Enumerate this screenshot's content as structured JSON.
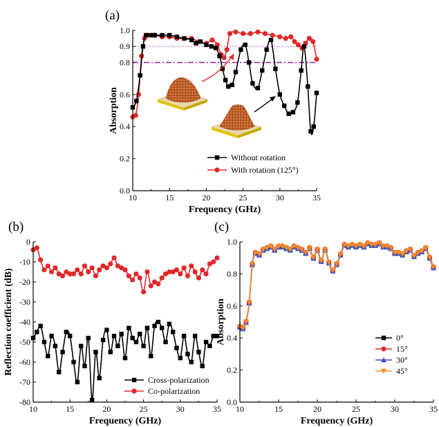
{
  "chart_data": [
    {
      "panel": "(a)",
      "type": "line",
      "xlabel": "Frequency (GHz)",
      "ylabel": "Absorption",
      "xlim": [
        10,
        35
      ],
      "ylim": [
        0,
        1
      ],
      "xticks": [
        10,
        15,
        20,
        25,
        30,
        35
      ],
      "yticks": [
        0.0,
        0.2,
        0.4,
        0.6,
        0.8,
        0.9,
        1.0
      ],
      "yticklabels": [
        "0.0",
        "0.2",
        "0.4",
        "0.6",
        "0.8",
        "0.9",
        "1.0"
      ],
      "ref_lines": [
        {
          "y": 0.9,
          "color": "#b050b0",
          "style": "dotted"
        },
        {
          "y": 0.8,
          "color": "#9a2a9a",
          "style": "dashdot"
        }
      ],
      "legend_position": "bottom-right",
      "series": [
        {
          "name": "Without rotation",
          "color": "#000000",
          "marker": "square",
          "x": [
            10,
            10.5,
            11,
            11.4,
            11.8,
            12.5,
            13,
            14,
            15,
            16,
            17,
            18,
            18.6,
            19.2,
            20,
            20.7,
            21.3,
            21.8,
            22.2,
            22.6,
            23,
            23.5,
            24,
            24.7,
            25.3,
            25.8,
            26.3,
            27,
            27.6,
            28.2,
            28.8,
            29.4,
            30,
            30.6,
            31.2,
            31.8,
            32.4,
            32.9,
            33.3,
            33.8,
            34.2,
            34.6,
            35
          ],
          "y": [
            0.52,
            0.56,
            0.72,
            0.9,
            0.97,
            0.97,
            0.97,
            0.97,
            0.97,
            0.96,
            0.95,
            0.94,
            0.92,
            0.93,
            0.91,
            0.9,
            0.89,
            0.84,
            0.76,
            0.69,
            0.65,
            0.66,
            0.74,
            0.88,
            0.91,
            0.8,
            0.67,
            0.64,
            0.75,
            0.88,
            0.94,
            0.76,
            0.6,
            0.53,
            0.48,
            0.49,
            0.55,
            0.75,
            0.9,
            0.65,
            0.37,
            0.4,
            0.61
          ]
        },
        {
          "name": "With rotation (125°)",
          "color": "#e0282a",
          "marker": "circle",
          "x": [
            10,
            10.4,
            10.8,
            11.2,
            11.6,
            12,
            13,
            14,
            15,
            16,
            17,
            18,
            19,
            20,
            20.8,
            21.5,
            22,
            22.4,
            22.8,
            23.2,
            24,
            25,
            26,
            27,
            28,
            29,
            30,
            30.8,
            31.5,
            32,
            32.5,
            33,
            33.5,
            34,
            34.5,
            35
          ],
          "y": [
            0.46,
            0.47,
            0.6,
            0.84,
            0.95,
            0.97,
            0.97,
            0.96,
            0.96,
            0.95,
            0.95,
            0.95,
            0.93,
            0.92,
            0.94,
            0.91,
            0.85,
            0.83,
            0.88,
            0.98,
            0.99,
            0.98,
            0.98,
            0.99,
            0.98,
            0.97,
            0.96,
            0.95,
            0.96,
            0.93,
            0.91,
            0.89,
            0.92,
            0.95,
            0.93,
            0.82
          ]
        }
      ]
    },
    {
      "panel": "(b)",
      "type": "line",
      "xlabel": "Frequency (GHz)",
      "ylabel": "Reflection coefficient (dB)",
      "xlim": [
        10,
        35
      ],
      "ylim": [
        -80,
        0
      ],
      "xticks": [
        10,
        15,
        20,
        25,
        30,
        35
      ],
      "yticks": [
        0,
        -10,
        -20,
        -30,
        -40,
        -50,
        -60,
        -70,
        -80
      ],
      "legend_position": "bottom-right",
      "series": [
        {
          "name": "Cross-polarization",
          "color": "#000000",
          "marker": "square",
          "x": [
            10,
            10.5,
            11,
            11.5,
            12,
            12.5,
            13,
            13.5,
            14,
            14.5,
            15,
            15.5,
            16,
            16.5,
            17,
            17.5,
            18,
            18.5,
            19,
            19.5,
            20,
            20.5,
            21,
            21.5,
            22,
            22.5,
            23,
            23.5,
            24,
            24.5,
            25,
            25.5,
            26,
            26.5,
            27,
            27.5,
            28,
            28.5,
            29,
            29.5,
            30,
            30.5,
            31,
            31.5,
            32,
            32.5,
            33,
            33.5,
            34,
            34.5,
            35
          ],
          "y": [
            -48,
            -45,
            -42,
            -50,
            -57,
            -47,
            -52,
            -65,
            -55,
            -45,
            -47,
            -60,
            -70,
            -52,
            -62,
            -48,
            -79,
            -55,
            -68,
            -49,
            -44,
            -55,
            -47,
            -52,
            -46,
            -58,
            -43,
            -48,
            -50,
            -46,
            -52,
            -43,
            -57,
            -42,
            -40,
            -43,
            -50,
            -41,
            -45,
            -53,
            -58,
            -47,
            -56,
            -60,
            -47,
            -55,
            -62,
            -50,
            -52,
            -47,
            -47
          ]
        },
        {
          "name": "Co-polarization",
          "color": "#e0282a",
          "marker": "circle",
          "x": [
            10,
            10.5,
            11,
            11.5,
            12,
            12.5,
            13,
            13.5,
            14,
            14.5,
            15,
            15.5,
            16,
            16.5,
            17,
            17.5,
            18,
            18.5,
            19,
            19.5,
            20,
            20.5,
            21,
            21.5,
            22,
            22.5,
            23,
            23.5,
            24,
            24.5,
            25,
            25.5,
            26,
            26.5,
            27,
            27.5,
            28,
            28.5,
            29,
            29.5,
            30,
            30.5,
            31,
            31.5,
            32,
            32.5,
            33,
            33.5,
            34,
            34.5,
            35
          ],
          "y": [
            -4,
            -3,
            -9,
            -14,
            -12,
            -15,
            -13,
            -16,
            -17,
            -15,
            -16,
            -16,
            -14,
            -16,
            -12,
            -15,
            -13,
            -17,
            -14,
            -12,
            -13,
            -11,
            -8,
            -12,
            -13,
            -14,
            -17,
            -19,
            -16,
            -18,
            -25,
            -15,
            -22,
            -20,
            -21,
            -18,
            -16,
            -15,
            -15,
            -14,
            -16,
            -13,
            -17,
            -12,
            -15,
            -18,
            -14,
            -16,
            -11,
            -10,
            -8
          ]
        }
      ]
    },
    {
      "panel": "(c)",
      "type": "line",
      "xlabel": "Frequency (GHz)",
      "ylabel": "Absorption",
      "xlim": [
        10,
        35
      ],
      "ylim": [
        0,
        1
      ],
      "xticks": [
        10,
        15,
        20,
        25,
        30,
        35
      ],
      "yticks": [
        0.0,
        0.2,
        0.4,
        0.6,
        0.8,
        1.0
      ],
      "yticklabels": [
        "0.0",
        "0.2",
        "0.4",
        "0.6",
        "0.8",
        "1.0"
      ],
      "legend_position": "bottom-right",
      "x": [
        10,
        10.4,
        10.8,
        11.2,
        11.6,
        12,
        12.5,
        13,
        13.5,
        14,
        14.5,
        15,
        15.5,
        16,
        16.5,
        17,
        17.5,
        18,
        18.5,
        19,
        19.5,
        20,
        20.5,
        21,
        21.5,
        22,
        22.5,
        23,
        23.5,
        24,
        24.5,
        25,
        25.5,
        26,
        26.5,
        27,
        27.5,
        28,
        28.5,
        29,
        29.5,
        30,
        30.5,
        31,
        31.5,
        32,
        32.5,
        33,
        33.5,
        34,
        34.5,
        35
      ],
      "series": [
        {
          "name": "0°",
          "color": "#000000",
          "marker": "square",
          "offset": 0.0
        },
        {
          "name": "15°",
          "color": "#e0282a",
          "marker": "circle",
          "offset": 0.004
        },
        {
          "name": "30°",
          "color": "#3a4fc4",
          "marker": "triangle",
          "offset": -0.004
        },
        {
          "name": "45°",
          "color": "#f08c28",
          "marker": "triangle-down",
          "offset": 0.002
        }
      ],
      "values": [
        0.47,
        0.46,
        0.5,
        0.62,
        0.86,
        0.93,
        0.92,
        0.95,
        0.96,
        0.97,
        0.95,
        0.97,
        0.97,
        0.96,
        0.95,
        0.97,
        0.96,
        0.95,
        0.93,
        0.96,
        0.9,
        0.95,
        0.88,
        0.95,
        0.87,
        0.82,
        0.86,
        0.92,
        0.98,
        0.97,
        0.98,
        0.97,
        0.98,
        0.97,
        0.99,
        0.98,
        0.98,
        0.99,
        0.97,
        0.97,
        0.96,
        0.93,
        0.93,
        0.92,
        0.94,
        0.95,
        0.91,
        0.93,
        0.94,
        0.96,
        0.9,
        0.84
      ]
    }
  ]
}
